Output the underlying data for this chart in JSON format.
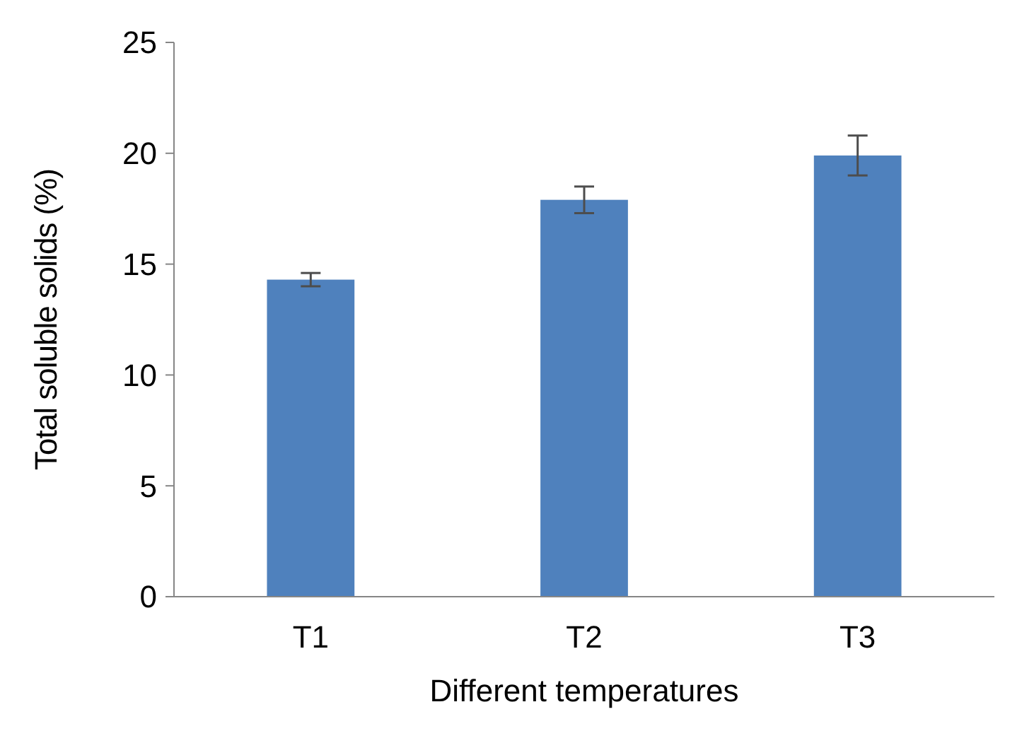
{
  "chart_data": {
    "type": "bar",
    "xlabel": "Different temperatures",
    "ylabel": "Total soluble solids (%)",
    "categories": [
      "T1",
      "T2",
      "T3"
    ],
    "values": [
      14.3,
      17.9,
      19.9
    ],
    "errors": [
      0.3,
      0.6,
      0.9
    ],
    "color": "#4f81bd",
    "ylim": [
      0,
      25
    ],
    "yticks": [
      0,
      5,
      10,
      15,
      20,
      25
    ],
    "grid": false
  }
}
